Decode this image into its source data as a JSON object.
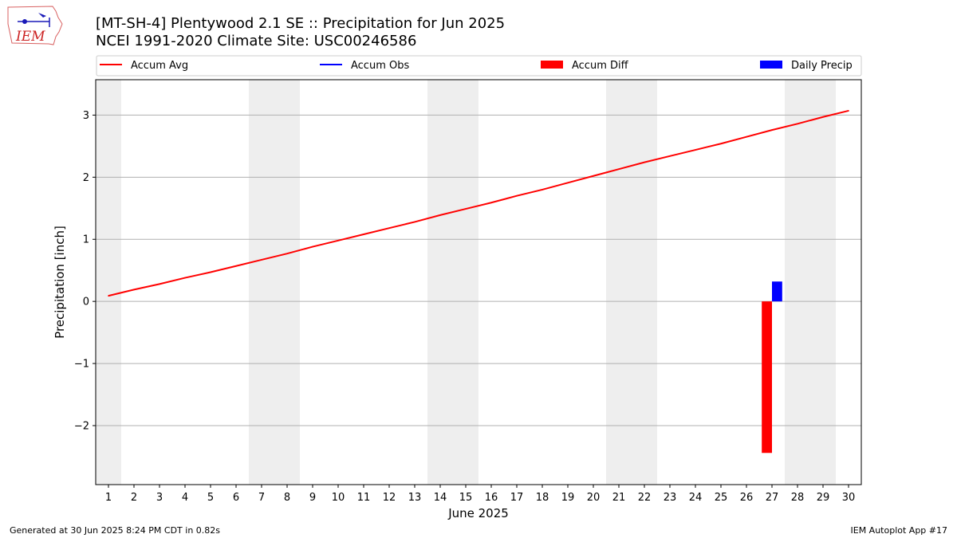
{
  "title_line1": "[MT-SH-4] Plentywood 2.1 SE :: Precipitation for Jun 2025",
  "title_line2": "NCEI 1991-2020 Climate Site: USC00246586",
  "logo_text": "IEM",
  "footer_left": "Generated at 30 Jun 2025 8:24 PM CDT in 0.82s",
  "footer_right": "IEM Autoplot App #17",
  "colors": {
    "accum_avg": "#ff0000",
    "accum_obs": "#0000ff",
    "accum_diff": "#ff0000",
    "daily_precip": "#0000ff",
    "weekend_shade": "#eeeeee",
    "grid": "#b0b0b0"
  },
  "chart_data": {
    "type": "line",
    "xlabel": "June 2025",
    "ylabel": "Precipitation [inch]",
    "x": [
      1,
      2,
      3,
      4,
      5,
      6,
      7,
      8,
      9,
      10,
      11,
      12,
      13,
      14,
      15,
      16,
      17,
      18,
      19,
      20,
      21,
      22,
      23,
      24,
      25,
      26,
      27,
      28,
      29,
      30
    ],
    "xlim": [
      0.5,
      30.5
    ],
    "ylim": [
      -2.95,
      3.57
    ],
    "yticks": [
      -2,
      -1,
      0,
      1,
      2,
      3
    ],
    "ytick_labels": [
      "−2",
      "−1",
      "0",
      "1",
      "2",
      "3"
    ],
    "grid": "horizontal",
    "legend_position": "top",
    "legend": [
      "Accum Avg",
      "Accum Obs",
      "Accum Diff",
      "Daily Precip"
    ],
    "shaded_days": [
      1,
      7,
      8,
      14,
      15,
      21,
      22,
      28,
      29
    ],
    "series": [
      {
        "name": "Accum Avg",
        "type": "line",
        "values": [
          0.09,
          0.19,
          0.28,
          0.38,
          0.47,
          0.57,
          0.67,
          0.77,
          0.88,
          0.98,
          1.08,
          1.18,
          1.28,
          1.39,
          1.49,
          1.59,
          1.7,
          1.8,
          1.91,
          2.02,
          2.13,
          2.24,
          2.34,
          2.44,
          2.54,
          2.65,
          2.76,
          2.86,
          2.97,
          3.07
        ]
      },
      {
        "name": "Accum Diff",
        "type": "bar",
        "points": [
          {
            "x": 27,
            "value": -2.44
          }
        ]
      },
      {
        "name": "Daily Precip",
        "type": "bar",
        "points": [
          {
            "x": 27,
            "value": 0.32
          }
        ]
      }
    ]
  }
}
